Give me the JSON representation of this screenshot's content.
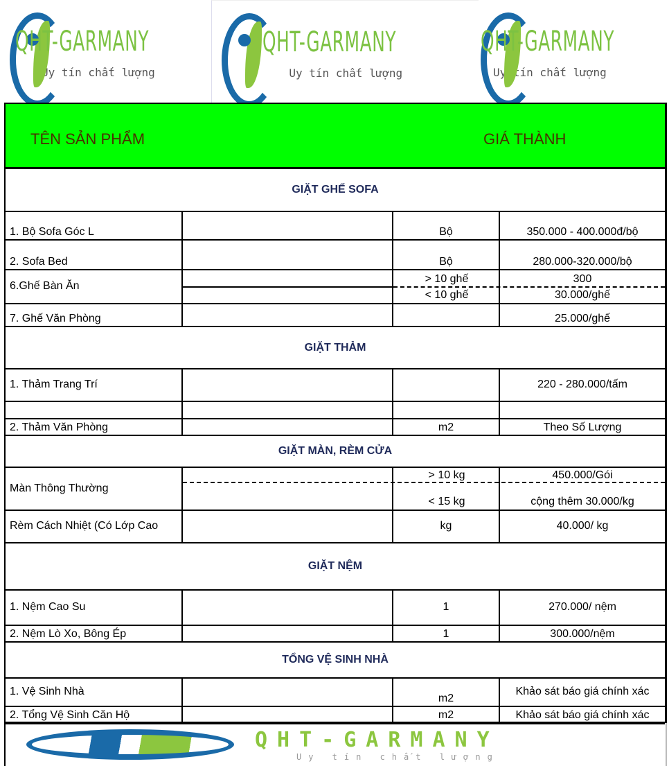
{
  "logo": {
    "brand": "QHT-GARMANY",
    "slogan": "Uy tín chất lượng",
    "colors": {
      "blue": "#1a6aa8",
      "green": "#8cc63f"
    }
  },
  "header": {
    "product": "TÊN SẢN PHẨM",
    "price": "GIÁ THÀNH",
    "background": "#00ff00"
  },
  "sections": [
    {
      "title": "GIẶT GHẾ SOFA",
      "rows": [
        {
          "name": "1. Bộ Sofa Góc L",
          "unit": "Bộ",
          "price": "350.000 - 400.000đ/bộ"
        },
        {
          "name": "2. Sofa Bed",
          "unit": "Bộ",
          "price": "280.000-320.000/bộ"
        },
        {
          "name": "6.Ghế Bàn Ăn",
          "unit_a": "> 10 ghế",
          "price_a": "300",
          "unit_b": "< 10 ghế",
          "price_b": "30.000/ghế"
        },
        {
          "name": "7. Ghế Văn Phòng",
          "unit": "",
          "price": "25.000/ghế"
        }
      ]
    },
    {
      "title": "GIẶT THẢM",
      "rows": [
        {
          "name": "1. Thảm Trang Trí",
          "unit": "",
          "price": "220 - 280.000/tấm"
        },
        {
          "name": "2. Thảm Văn Phòng",
          "unit": "m2",
          "price": "Theo Số Lượng"
        }
      ]
    },
    {
      "title": "GIẶT MÀN, RÈM CỬA",
      "rows": [
        {
          "name": "Màn Thông Thường",
          "unit_a": "> 10 kg",
          "price_a": "450.000/Gói",
          "unit_b": "< 15 kg",
          "price_b": "cộng thêm 30.000/kg"
        },
        {
          "name": "Rèm Cách Nhiệt (Có Lớp Cao",
          "unit": "kg",
          "price": "40.000/ kg"
        }
      ]
    },
    {
      "title": "GIẶT NỆM",
      "rows": [
        {
          "name": "1. Nệm  Cao Su",
          "unit": "1",
          "price": "270.000/ nệm"
        },
        {
          "name": "2. Nệm Lò Xo, Bông Ép",
          "unit": "1",
          "price": "300.000/nệm"
        }
      ]
    },
    {
      "title": "TỔNG VỆ SINH NHÀ",
      "rows": [
        {
          "name": "1. Vệ Sinh Nhà",
          "unit": "m2",
          "price": "Khảo sát báo giá chính xác"
        },
        {
          "name": "2. Tổng Vệ Sinh Căn Hộ",
          "unit": "m2",
          "price": "Khảo sát báo giá chính xác"
        }
      ]
    }
  ]
}
